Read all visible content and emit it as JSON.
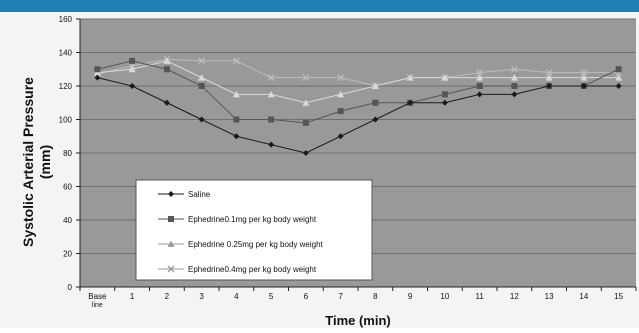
{
  "chart_data": {
    "type": "line",
    "title": "",
    "xlabel": "Time (min)",
    "ylabel_line1": "Systolic Arterial Pressure",
    "ylabel_line2": "(mm)",
    "ylim": [
      0,
      160
    ],
    "yticks": [
      0,
      20,
      40,
      60,
      80,
      100,
      120,
      140,
      160
    ],
    "categories": [
      [
        "Base",
        "line"
      ],
      [
        "1"
      ],
      [
        "2"
      ],
      [
        "3"
      ],
      [
        "4"
      ],
      [
        "5"
      ],
      [
        "6"
      ],
      [
        "7"
      ],
      [
        "8"
      ],
      [
        "9"
      ],
      [
        "10"
      ],
      [
        "11"
      ],
      [
        "12"
      ],
      [
        "13"
      ],
      [
        "14"
      ],
      [
        "15"
      ]
    ],
    "grid": true,
    "legend_position": "bottom-left inside plot",
    "plot_bg": "#999999",
    "series": [
      {
        "name": "Saline",
        "marker": "diamond",
        "color": "#1a1a1a",
        "values": [
          125,
          120,
          110,
          100,
          90,
          85,
          80,
          90,
          100,
          110,
          110,
          115,
          115,
          120,
          120,
          120
        ]
      },
      {
        "name": "Ephedrine0.1mg per kg body weight",
        "marker": "square",
        "color": "#555555",
        "values": [
          130,
          135,
          130,
          120,
          100,
          100,
          98,
          105,
          110,
          110,
          115,
          120,
          120,
          120,
          120,
          130
        ]
      },
      {
        "name": "Ephedrine 0.25mg per kg body weight",
        "marker": "triangle",
        "color": "#d9d9d9",
        "values": [
          128,
          130,
          135,
          125,
          115,
          115,
          110,
          115,
          120,
          125,
          125,
          125,
          125,
          125,
          125,
          125
        ]
      },
      {
        "name": "Ephedrine0.4mg per kg body weight",
        "marker": "x",
        "color": "#bdbdbd",
        "values": [
          127,
          132,
          136,
          135,
          135,
          125,
          125,
          125,
          120,
          125,
          125,
          128,
          130,
          128,
          128,
          128
        ]
      }
    ]
  }
}
